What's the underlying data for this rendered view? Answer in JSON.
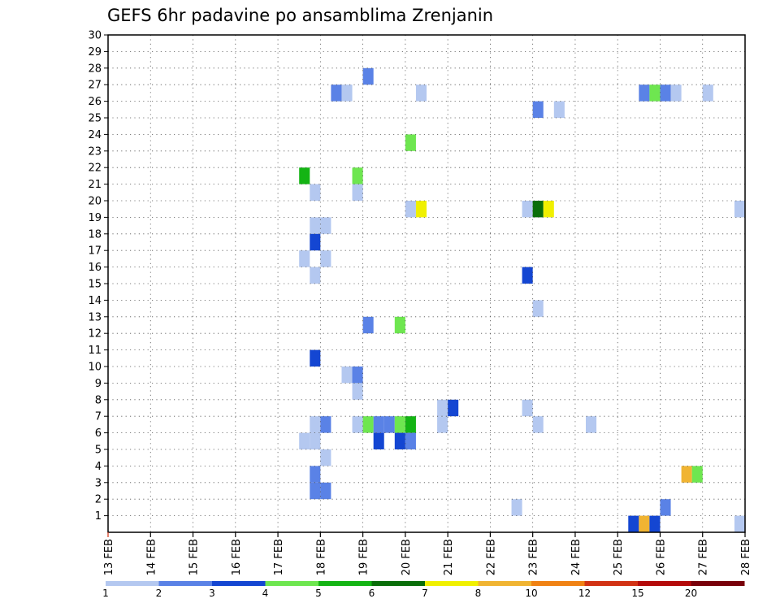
{
  "chart_data": {
    "type": "heatmap",
    "title": "GEFS 6hr padavine po ansamblima Zrenjanin",
    "xlabel": "",
    "ylabel": "",
    "x_tick_labels": [
      "13 FEB",
      "14 FEB",
      "15 FEB",
      "16 FEB",
      "17 FEB",
      "18 FEB",
      "19 FEB",
      "20 FEB",
      "21 FEB",
      "22 FEB",
      "23 FEB",
      "24 FEB",
      "25 FEB",
      "26 FEB",
      "27 FEB",
      "28 FEB"
    ],
    "y_tick_labels": [
      "1",
      "2",
      "3",
      "4",
      "5",
      "6",
      "7",
      "8",
      "9",
      "10",
      "11",
      "12",
      "13",
      "14",
      "15",
      "16",
      "17",
      "18",
      "19",
      "20",
      "21",
      "22",
      "23",
      "24",
      "25",
      "26",
      "27",
      "28",
      "29",
      "30"
    ],
    "xlim": [
      0,
      60
    ],
    "ylim": [
      0,
      30
    ],
    "x_unit": "6-hour steps from 13 FEB 00Z",
    "y_unit": "ensemble member",
    "grid": true,
    "colorbar": {
      "labels": [
        "1",
        "2",
        "3",
        "4",
        "5",
        "6",
        "7",
        "8",
        "10",
        "12",
        "15",
        "20"
      ],
      "colors": [
        "#b4c8f0",
        "#5a82e6",
        "#1446d2",
        "#6ee650",
        "#14b414",
        "#0a6e0a",
        "#f0f000",
        "#f0b432",
        "#f08214",
        "#d23214",
        "#b40a0a",
        "#78000a"
      ]
    },
    "cells": [
      {
        "x": 24.5,
        "y": 28,
        "c": 2
      },
      {
        "x": 21.5,
        "y": 27,
        "c": 2
      },
      {
        "x": 22.5,
        "y": 27,
        "c": 1
      },
      {
        "x": 29.5,
        "y": 27,
        "c": 1
      },
      {
        "x": 50.5,
        "y": 27,
        "c": 2
      },
      {
        "x": 51.5,
        "y": 27,
        "c": 4
      },
      {
        "x": 52.5,
        "y": 27,
        "c": 2
      },
      {
        "x": 53.5,
        "y": 27,
        "c": 1
      },
      {
        "x": 56.5,
        "y": 27,
        "c": 1
      },
      {
        "x": 40.5,
        "y": 26,
        "c": 2
      },
      {
        "x": 42.5,
        "y": 26,
        "c": 1
      },
      {
        "x": 28.5,
        "y": 24,
        "c": 4
      },
      {
        "x": 18.5,
        "y": 22,
        "c": 5
      },
      {
        "x": 23.5,
        "y": 22,
        "c": 4
      },
      {
        "x": 19.5,
        "y": 21,
        "c": 1
      },
      {
        "x": 23.5,
        "y": 21,
        "c": 1
      },
      {
        "x": 28.5,
        "y": 20,
        "c": 1
      },
      {
        "x": 29.5,
        "y": 20,
        "c": 7
      },
      {
        "x": 39.5,
        "y": 20,
        "c": 1
      },
      {
        "x": 40.5,
        "y": 20,
        "c": 6
      },
      {
        "x": 41.5,
        "y": 20,
        "c": 7
      },
      {
        "x": 59.5,
        "y": 20,
        "c": 1
      },
      {
        "x": 19.5,
        "y": 19,
        "c": 1
      },
      {
        "x": 20.5,
        "y": 19,
        "c": 1
      },
      {
        "x": 19.5,
        "y": 18,
        "c": 3
      },
      {
        "x": 18.5,
        "y": 17,
        "c": 1
      },
      {
        "x": 20.5,
        "y": 17,
        "c": 1
      },
      {
        "x": 19.5,
        "y": 16,
        "c": 1
      },
      {
        "x": 39.5,
        "y": 16,
        "c": 3
      },
      {
        "x": 40.5,
        "y": 14,
        "c": 1
      },
      {
        "x": 24.5,
        "y": 13,
        "c": 2
      },
      {
        "x": 27.5,
        "y": 13,
        "c": 4
      },
      {
        "x": 19.5,
        "y": 11,
        "c": 3
      },
      {
        "x": 22.5,
        "y": 10,
        "c": 1
      },
      {
        "x": 23.5,
        "y": 10,
        "c": 2
      },
      {
        "x": 23.5,
        "y": 9,
        "c": 1
      },
      {
        "x": 31.5,
        "y": 8,
        "c": 1
      },
      {
        "x": 32.5,
        "y": 8,
        "c": 3
      },
      {
        "x": 39.5,
        "y": 8,
        "c": 1
      },
      {
        "x": 19.5,
        "y": 7,
        "c": 1
      },
      {
        "x": 20.5,
        "y": 7,
        "c": 2
      },
      {
        "x": 23.5,
        "y": 7,
        "c": 1
      },
      {
        "x": 24.5,
        "y": 7,
        "c": 4
      },
      {
        "x": 25.5,
        "y": 7,
        "c": 2
      },
      {
        "x": 26.5,
        "y": 7,
        "c": 2
      },
      {
        "x": 27.5,
        "y": 7,
        "c": 4
      },
      {
        "x": 28.5,
        "y": 7,
        "c": 5
      },
      {
        "x": 31.5,
        "y": 7,
        "c": 1
      },
      {
        "x": 40.5,
        "y": 7,
        "c": 1
      },
      {
        "x": 45.5,
        "y": 7,
        "c": 1
      },
      {
        "x": 18.5,
        "y": 6,
        "c": 1
      },
      {
        "x": 19.5,
        "y": 6,
        "c": 1
      },
      {
        "x": 25.5,
        "y": 6,
        "c": 3
      },
      {
        "x": 27.5,
        "y": 6,
        "c": 3
      },
      {
        "x": 28.5,
        "y": 6,
        "c": 2
      },
      {
        "x": 20.5,
        "y": 5,
        "c": 1
      },
      {
        "x": 19.5,
        "y": 4,
        "c": 2
      },
      {
        "x": 54.5,
        "y": 4,
        "c": 8
      },
      {
        "x": 55.5,
        "y": 4,
        "c": 4
      },
      {
        "x": 19.5,
        "y": 3,
        "c": 2
      },
      {
        "x": 20.5,
        "y": 3,
        "c": 2
      },
      {
        "x": 38.5,
        "y": 2,
        "c": 1
      },
      {
        "x": 52.5,
        "y": 2,
        "c": 2
      },
      {
        "x": 49.5,
        "y": 1,
        "c": 3
      },
      {
        "x": 50.5,
        "y": 1,
        "c": 8
      },
      {
        "x": 51.5,
        "y": 1,
        "c": 3
      },
      {
        "x": 59.5,
        "y": 1,
        "c": 1
      }
    ]
  }
}
